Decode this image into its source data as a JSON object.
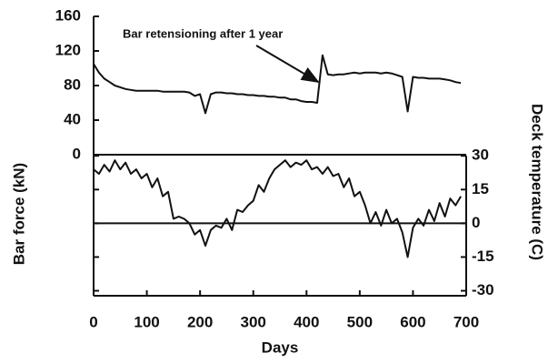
{
  "chart_data": {
    "type": "line",
    "annotation": "Bar retensioning after 1 year",
    "xlabel": "Days",
    "ylabel": "Bar force (kN)",
    "y2label": "Deck temperature (C)",
    "x": [
      0,
      10,
      20,
      30,
      40,
      50,
      60,
      70,
      80,
      90,
      100,
      110,
      120,
      130,
      140,
      150,
      160,
      170,
      180,
      190,
      200,
      210,
      220,
      230,
      240,
      250,
      260,
      270,
      280,
      290,
      300,
      310,
      320,
      330,
      340,
      350,
      360,
      370,
      380,
      390,
      400,
      410,
      420,
      430,
      440,
      450,
      460,
      470,
      480,
      490,
      500,
      510,
      520,
      530,
      540,
      550,
      560,
      570,
      580,
      590,
      600,
      610,
      620,
      630,
      640,
      650,
      660,
      670,
      680,
      690
    ],
    "series": [
      {
        "color": "#111111",
        "values": [
          105,
          95,
          88,
          84,
          80,
          78,
          76,
          75,
          74,
          74,
          74,
          74,
          74,
          73,
          73,
          73,
          73,
          73,
          72,
          68,
          70,
          48,
          70,
          72,
          72,
          71,
          71,
          70,
          70,
          69,
          69,
          68,
          68,
          67,
          67,
          66,
          66,
          64,
          64,
          62,
          61,
          61,
          60,
          115,
          93,
          92,
          93,
          93,
          94,
          95,
          94,
          95,
          95,
          95,
          94,
          95,
          94,
          92,
          90,
          50,
          90,
          89,
          89,
          88,
          88,
          88,
          87,
          86,
          84,
          83
        ]
      },
      {
        "color": "#111111",
        "axis": "y2",
        "values": [
          24,
          22,
          26,
          23,
          28,
          24,
          27,
          22,
          24,
          20,
          22,
          16,
          20,
          12,
          14,
          2,
          3,
          2,
          0,
          -5,
          -3,
          -10,
          -3,
          -1,
          -2,
          2,
          -3,
          6,
          5,
          8,
          10,
          17,
          14,
          20,
          24,
          26,
          28,
          25,
          27,
          26,
          28,
          24,
          25,
          22,
          25,
          21,
          22,
          16,
          20,
          12,
          14,
          8,
          0,
          5,
          -1,
          6,
          0,
          2,
          -4,
          -15,
          -2,
          2,
          -1,
          6,
          1,
          9,
          3,
          11,
          8,
          12
        ]
      }
    ],
    "xlim": [
      0,
      700
    ],
    "xticks": [
      0,
      100,
      200,
      300,
      400,
      500,
      600,
      700
    ],
    "ylim": [
      -160,
      160
    ],
    "yticks": [
      0,
      40,
      80,
      120,
      160
    ],
    "y2lim": [
      -31,
      92
    ],
    "y2ticks": [
      -30,
      -15,
      0,
      15,
      30
    ]
  }
}
